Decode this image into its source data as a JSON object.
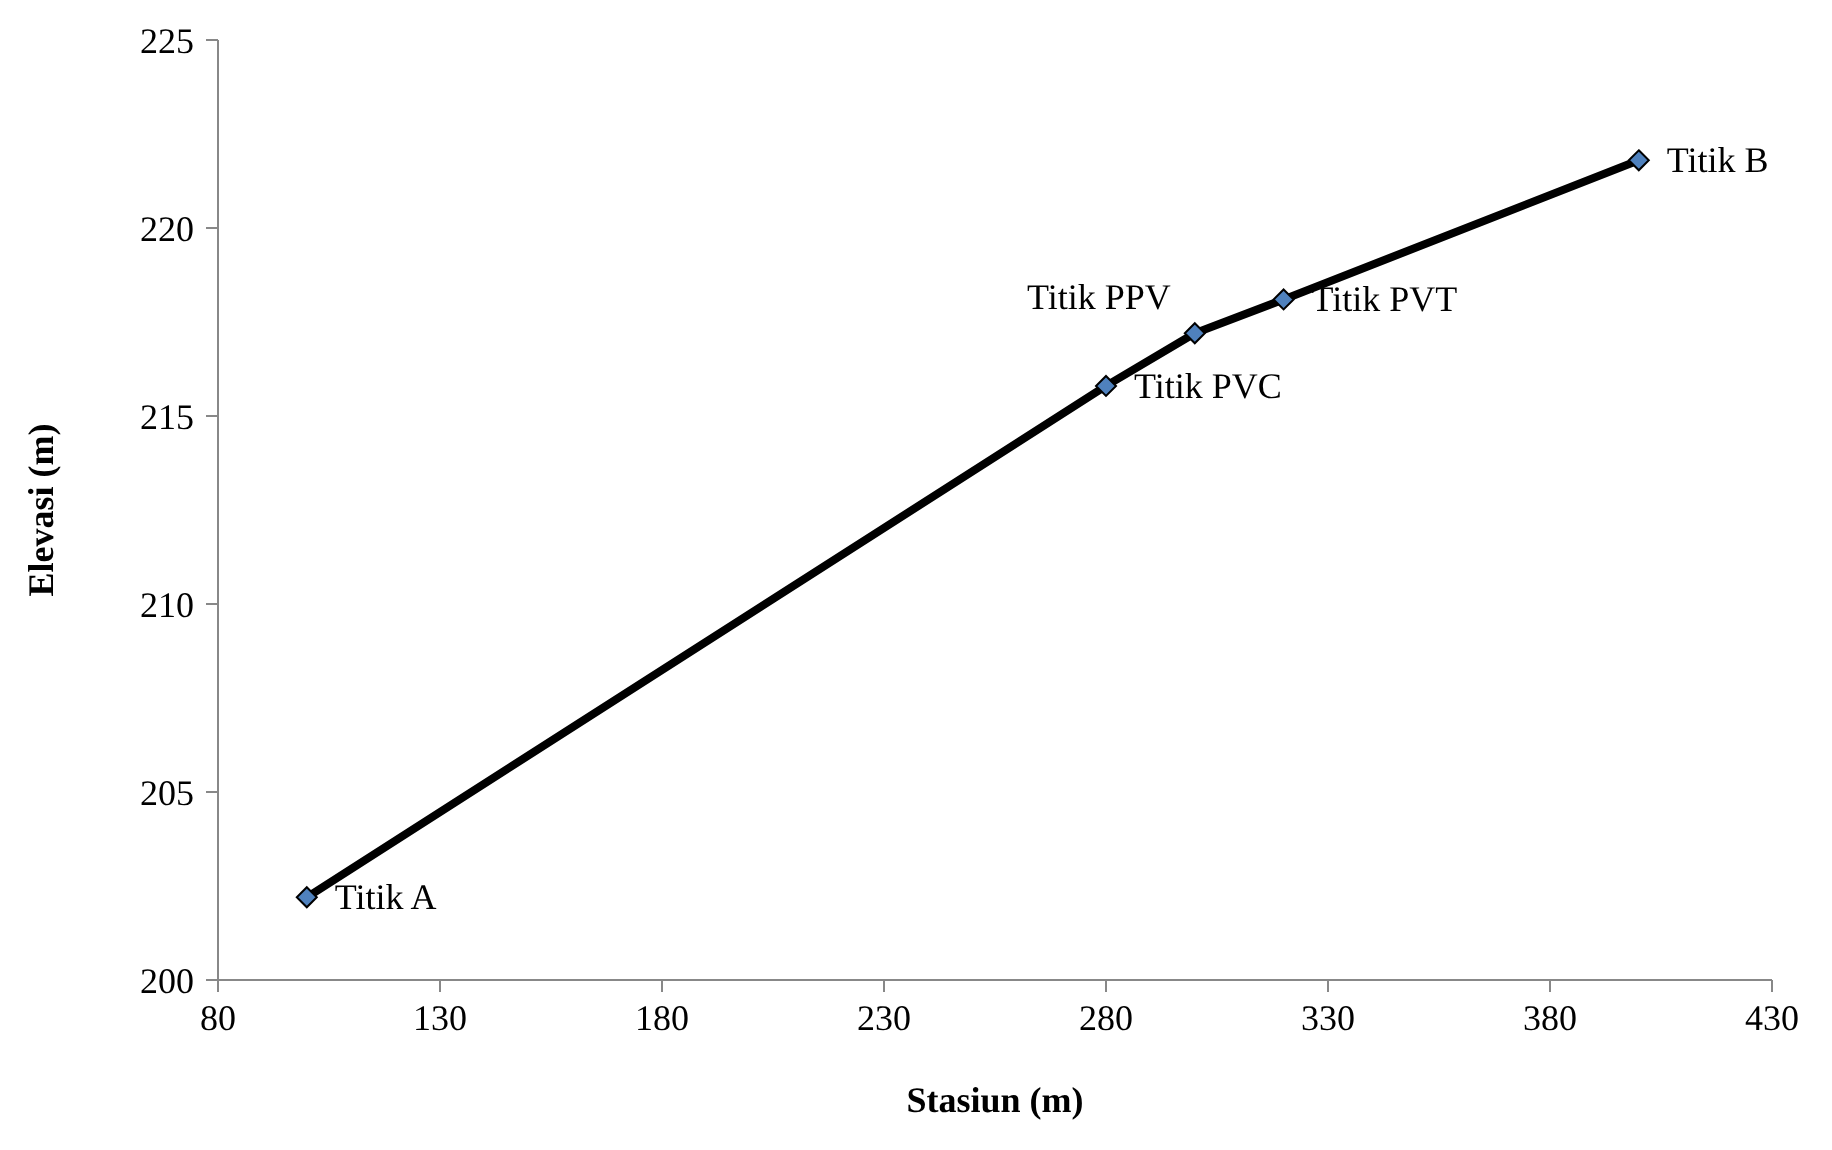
{
  "chart_data": {
    "type": "line",
    "xlabel": "Stasiun (m)",
    "ylabel": "Elevasi (m)",
    "x": [
      100,
      280,
      300,
      320,
      400
    ],
    "series": [
      {
        "color": "#000000",
        "values": [
          202.2,
          215.8,
          217.2,
          218.1,
          221.8
        ]
      }
    ],
    "xlim": [
      80,
      430
    ],
    "xticks": [
      80,
      130,
      180,
      230,
      280,
      330,
      380,
      430
    ],
    "ylim": [
      200,
      225
    ],
    "yticks": [
      200,
      205,
      210,
      215,
      220,
      225
    ],
    "grid": false,
    "legend": false,
    "marker": "diamond",
    "line_style": "solid",
    "annotations": [
      {
        "text": "Titik A",
        "x": 100,
        "y": 202.2
      },
      {
        "text": "Titik PVC",
        "x": 280,
        "y": 215.8
      },
      {
        "text": "Titik PPV",
        "x": 300,
        "y": 217.2
      },
      {
        "text": "Titik PVT",
        "x": 320,
        "y": 218.1
      },
      {
        "text": "Titik B",
        "x": 400,
        "y": 221.8
      }
    ]
  }
}
